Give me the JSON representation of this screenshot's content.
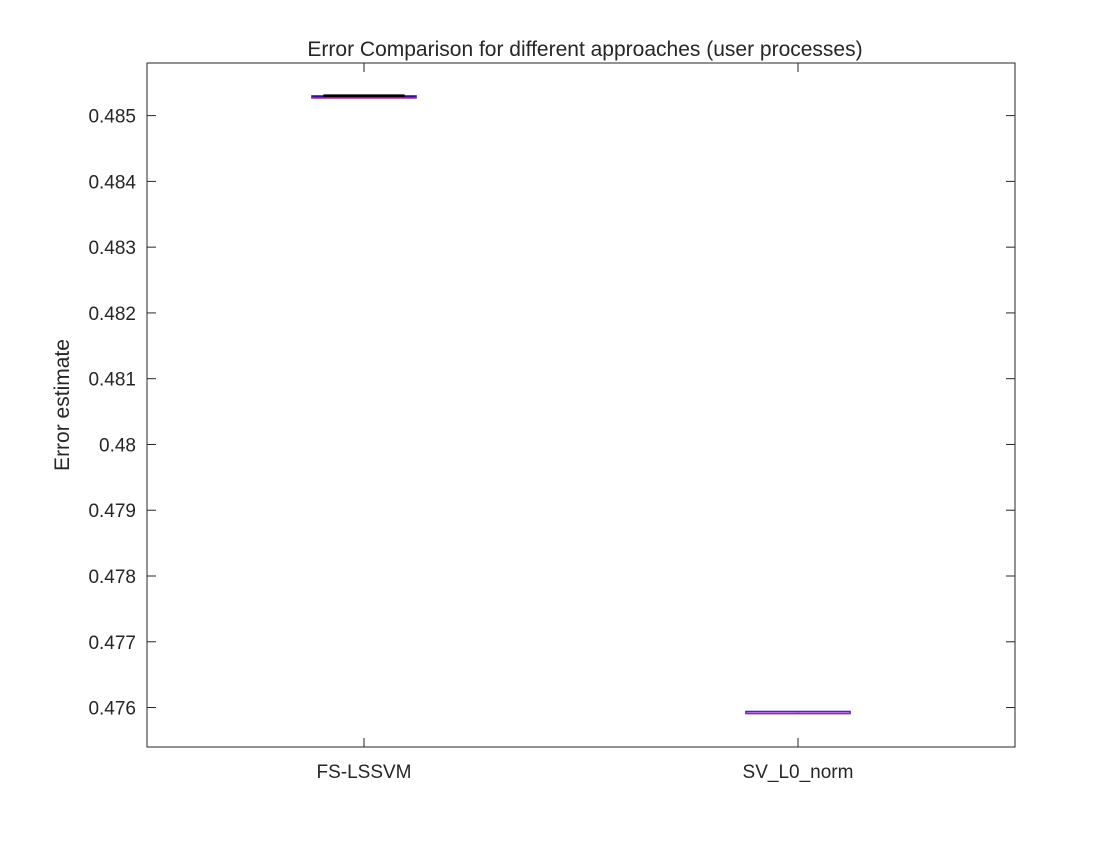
{
  "chart_data": {
    "type": "box",
    "title": "Error Comparison for different approaches (user processes)",
    "xlabel": "",
    "ylabel": "Error estimate",
    "categories": [
      "FS-LSSVM",
      "SV_L0_norm"
    ],
    "ylim": [
      0.4754,
      0.4858
    ],
    "yticks": [
      0.476,
      0.477,
      0.478,
      0.479,
      0.48,
      0.481,
      0.482,
      0.483,
      0.484,
      0.485
    ],
    "ytick_labels": [
      "0.476",
      "0.477",
      "0.478",
      "0.479",
      "0.48",
      "0.481",
      "0.482",
      "0.483",
      "0.484",
      "0.485"
    ],
    "boxes": [
      {
        "category": "FS-LSSVM",
        "q1": 0.48527,
        "median": 0.485285,
        "q3": 0.4853,
        "whisker_low": 0.48527,
        "whisker_high": 0.4853
      },
      {
        "category": "SV_L0_norm",
        "q1": 0.475925,
        "median": 0.475925,
        "q3": 0.475925,
        "whisker_low": 0.475925,
        "whisker_high": 0.475925
      }
    ],
    "grid": false,
    "colors": {
      "box": "#4b1fd6",
      "median": "#c0139a",
      "whisker": "#000000",
      "axis": "#262626"
    }
  }
}
